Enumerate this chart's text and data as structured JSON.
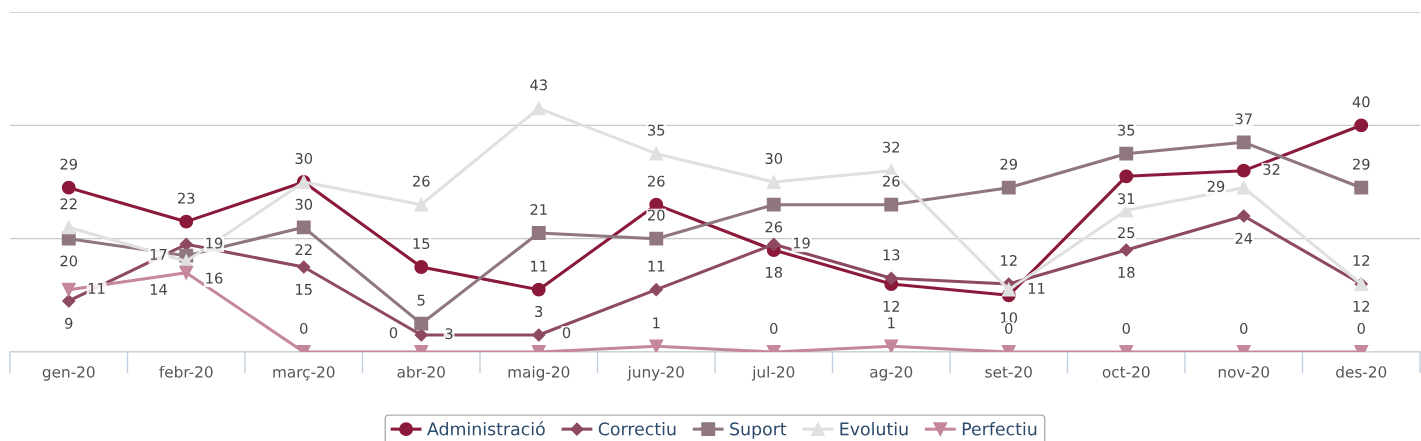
{
  "chart_data": {
    "type": "line",
    "categories": [
      "gen-20",
      "febr-20",
      "març-20",
      "abr-20",
      "maig-20",
      "juny-20",
      "jul-20",
      "ag-20",
      "set-20",
      "oct-20",
      "nov-20",
      "des-20"
    ],
    "series": [
      {
        "name": "Administració",
        "color": "#8b1a3a",
        "marker": "circle",
        "values": [
          29,
          23,
          30,
          15,
          11,
          26,
          18,
          12,
          10,
          31,
          32,
          40
        ]
      },
      {
        "name": "Correctiu",
        "color": "#8e4a62",
        "marker": "diamond",
        "values": [
          9,
          19,
          15,
          3,
          3,
          11,
          19,
          13,
          12,
          18,
          24,
          12
        ]
      },
      {
        "name": "Suport",
        "color": "#8f7680",
        "marker": "square",
        "values": [
          20,
          17,
          22,
          5,
          21,
          20,
          26,
          26,
          29,
          35,
          37,
          29
        ]
      },
      {
        "name": "Evolutiu",
        "color": "#e0e0e0",
        "marker": "triangle",
        "values": [
          22,
          16,
          30,
          26,
          43,
          35,
          30,
          32,
          11,
          25,
          29,
          12
        ]
      },
      {
        "name": "Perfectiu",
        "color": "#c4879b",
        "marker": "triangle_down",
        "values": [
          11,
          14,
          0,
          0,
          0,
          1,
          0,
          1,
          0,
          0,
          0,
          0
        ]
      }
    ],
    "ylim": [
      0,
      60
    ],
    "yticks": [
      {
        "value": 0,
        "label": null
      },
      {
        "value": 20,
        "label": null
      },
      {
        "value": 40,
        "label": null
      },
      {
        "value": 60,
        "label": null
      }
    ],
    "tick_labels": "x",
    "grid": "y",
    "data_labels": true,
    "legend": "bottom",
    "line_style": "solid"
  }
}
